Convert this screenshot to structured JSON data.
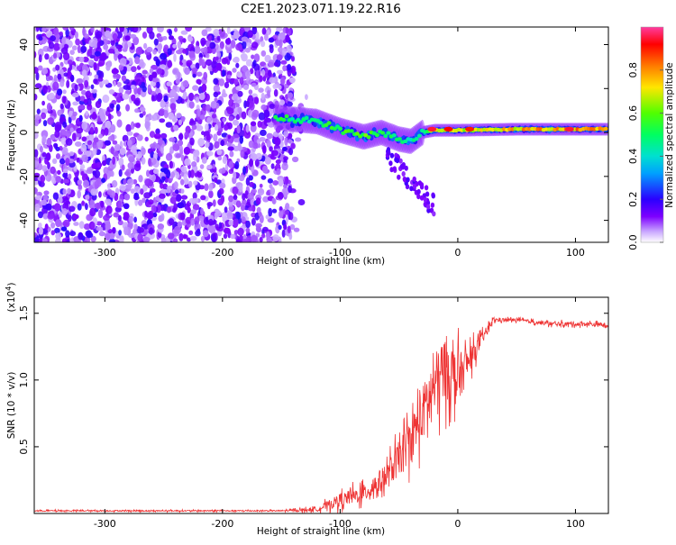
{
  "title": "C2E1.2023.071.19.22.R16",
  "chart_data": [
    {
      "type": "heatmap",
      "xlabel": "Height of straight line (km)",
      "ylabel": "Frequency (Hz)",
      "xlim": [
        -360,
        128
      ],
      "ylim": [
        -50,
        48
      ],
      "xticks": [
        -300,
        -200,
        -100,
        0,
        100
      ],
      "xtick_labels": [
        "-300",
        "-200",
        "-100",
        "0",
        "100"
      ],
      "yticks": [
        -40,
        -20,
        0,
        20,
        40
      ],
      "ytick_labels": [
        "-40",
        "-20",
        "0",
        "20",
        "40"
      ],
      "colorbar": {
        "label": "Normalized spectral amplitude",
        "range": [
          0,
          1
        ],
        "ticks": [
          0.0,
          0.2,
          0.4,
          0.6,
          0.8
        ],
        "tick_labels": [
          "0.0",
          "0.2",
          "0.4",
          "0.6",
          "0.8"
        ],
        "colormap": [
          "#ffffff",
          "#c9a7ff",
          "#7d00ff",
          "#2a00ff",
          "#00c8ff",
          "#00ff80",
          "#5cff00",
          "#ffe600",
          "#ff7a00",
          "#ff0000",
          "#ff3ca0"
        ]
      },
      "noise_region": {
        "x_range": [
          -360,
          -140
        ],
        "y_range": [
          -50,
          48
        ],
        "typical_amplitude": 0.1
      },
      "signal_track": [
        {
          "x": -155,
          "y": 7,
          "amp": 0.55
        },
        {
          "x": -140,
          "y": 6,
          "amp": 0.5
        },
        {
          "x": -120,
          "y": 5,
          "amp": 0.5
        },
        {
          "x": -100,
          "y": 1,
          "amp": 0.55
        },
        {
          "x": -80,
          "y": -2,
          "amp": 0.6
        },
        {
          "x": -65,
          "y": 0,
          "amp": 0.55
        },
        {
          "x": -50,
          "y": -3,
          "amp": 0.5
        },
        {
          "x": -40,
          "y": -4,
          "amp": 0.45
        },
        {
          "x": -30,
          "y": 0,
          "amp": 0.5
        },
        {
          "x": -20,
          "y": 1,
          "amp": 0.7
        },
        {
          "x": 0,
          "y": 1,
          "amp": 0.65
        },
        {
          "x": 50,
          "y": 1.5,
          "amp": 0.75
        },
        {
          "x": 100,
          "y": 1.5,
          "amp": 0.8
        },
        {
          "x": 128,
          "y": 1.5,
          "amp": 0.75
        }
      ],
      "hotspots": [
        {
          "x": -22,
          "y": 1.5,
          "amp": 0.95
        },
        {
          "x": -8,
          "y": 1.5,
          "amp": 0.92
        },
        {
          "x": 10,
          "y": 1.5,
          "amp": 0.9
        },
        {
          "x": 95,
          "y": 1.5,
          "amp": 0.95
        }
      ]
    },
    {
      "type": "line",
      "xlabel": "Height of straight line (km)",
      "ylabel": "SNR (10 * v/v)",
      "y_multiplier": "(x10",
      "y_multiplier_exp": "4",
      "y_multiplier_close": ")",
      "xlim": [
        -360,
        128
      ],
      "ylim": [
        0,
        1.62
      ],
      "xticks": [
        -300,
        -200,
        -100,
        0,
        100
      ],
      "xtick_labels": [
        "-300",
        "-200",
        "-100",
        "0",
        "100"
      ],
      "yticks": [
        0.5,
        1.0,
        1.5
      ],
      "ytick_labels": [
        "0.5",
        "1.0",
        "1.5"
      ],
      "color": "#ee3333",
      "envelope": {
        "x": [
          -360,
          -150,
          -120,
          -100,
          -80,
          -60,
          -40,
          -20,
          -10,
          0,
          10,
          20,
          30,
          50,
          80,
          110,
          128
        ],
        "y": [
          0.02,
          0.02,
          0.03,
          0.1,
          0.15,
          0.28,
          0.55,
          0.95,
          1.1,
          1.0,
          1.15,
          1.3,
          1.45,
          1.45,
          1.42,
          1.42,
          1.41
        ],
        "noise": [
          0.006,
          0.006,
          0.02,
          0.06,
          0.08,
          0.12,
          0.2,
          0.3,
          0.3,
          0.25,
          0.12,
          0.06,
          0.02,
          0.015,
          0.02,
          0.02,
          0.02
        ]
      }
    }
  ]
}
